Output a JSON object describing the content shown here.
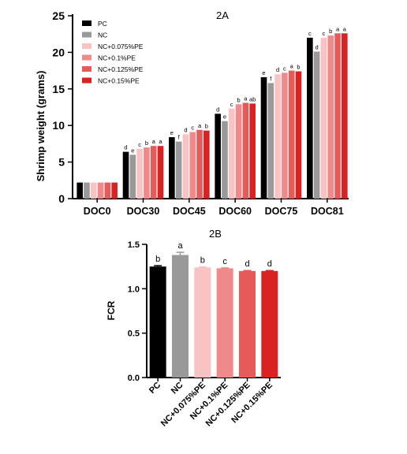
{
  "chart_data": [
    {
      "type": "bar",
      "title": "2A",
      "ylabel": "Shrimp weight (grams)",
      "xlabel": "",
      "ylim": [
        0,
        25
      ],
      "yticks": [
        0,
        5,
        10,
        15,
        20,
        25
      ],
      "categories": [
        "DOC0",
        "DOC30",
        "DOC45",
        "DOC60",
        "DOC75",
        "DOC81"
      ],
      "legend": "top-left",
      "grid": false,
      "series": [
        {
          "name": "PC",
          "color": "#000000",
          "values": [
            2.2,
            6.4,
            8.4,
            11.6,
            16.6,
            22.0
          ],
          "labels": [
            "",
            "d",
            "e",
            "d",
            "e",
            "c"
          ]
        },
        {
          "name": "NC",
          "color": "#999999",
          "values": [
            2.2,
            6.0,
            7.8,
            10.6,
            15.8,
            20.1
          ],
          "labels": [
            "",
            "e",
            "f",
            "e",
            "f",
            "d"
          ]
        },
        {
          "name": "NC+0.075%PE",
          "color": "#f9c3c3",
          "values": [
            2.2,
            6.8,
            8.8,
            12.3,
            17.0,
            22.0
          ],
          "labels": [
            "",
            "c",
            "d",
            "c",
            "d",
            "c"
          ]
        },
        {
          "name": "NC+0.1%PE",
          "color": "#f08a8a",
          "values": [
            2.2,
            7.0,
            9.1,
            12.9,
            17.2,
            22.3
          ],
          "labels": [
            "",
            "b",
            "c",
            "b",
            "c",
            "b"
          ]
        },
        {
          "name": "NC+0.125%PE",
          "color": "#e65a5a",
          "values": [
            2.2,
            7.2,
            9.4,
            13.1,
            17.5,
            22.6
          ],
          "labels": [
            "",
            "a",
            "a",
            "a",
            "a",
            "a"
          ]
        },
        {
          "name": "NC+0.15%PE",
          "color": "#d92323",
          "values": [
            2.2,
            7.2,
            9.3,
            13.0,
            17.4,
            22.6
          ],
          "labels": [
            "",
            "a",
            "b",
            "ab",
            "b",
            "a"
          ]
        }
      ]
    },
    {
      "type": "bar",
      "title": "2B",
      "ylabel": "FCR",
      "xlabel": "",
      "ylim": [
        0,
        1.5
      ],
      "yticks": [
        "0.0",
        "0.5",
        "1.0",
        "1.5"
      ],
      "categories": [
        "PC",
        "NC",
        "NC+0.075%PE",
        "NC+0.1%PE",
        "NC+0.125%PE",
        "NC+0.15%PE"
      ],
      "colors": [
        "#000000",
        "#999999",
        "#f9c3c3",
        "#f08a8a",
        "#e65a5a",
        "#d92323"
      ],
      "values": [
        1.25,
        1.38,
        1.24,
        1.23,
        1.2,
        1.2
      ],
      "errors": [
        0.01,
        0.03,
        0.005,
        0.005,
        0.005,
        0.005
      ],
      "labels": [
        "b",
        "a",
        "b",
        "c",
        "d",
        "d"
      ],
      "grid": false
    }
  ]
}
